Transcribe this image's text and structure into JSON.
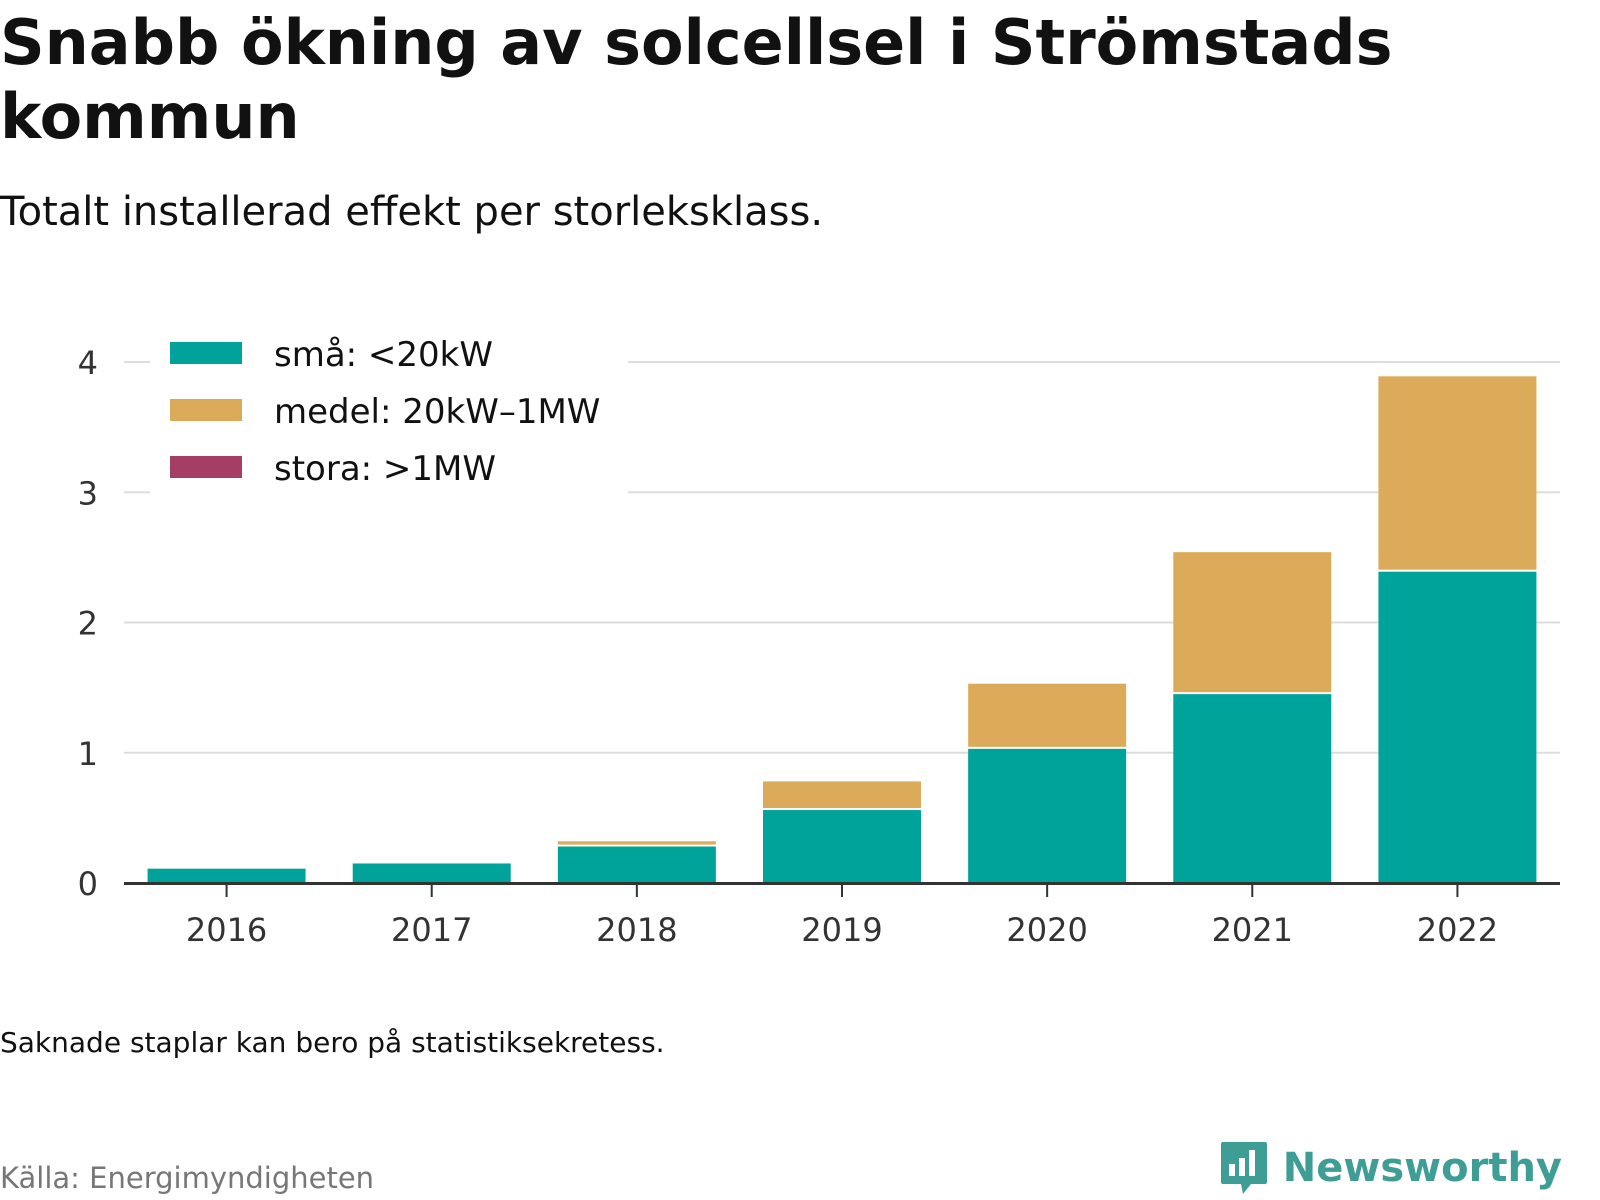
{
  "title": "Snabb ökning av solcellsel i Strömstads kommun",
  "subtitle": "Totalt installerad effekt per storleksklass.",
  "note": "Saknade staplar kan bero på statistiksekretess.",
  "source": "Källa: Energimyndigheten",
  "brand": {
    "name": "Newsworthy",
    "icon": "newsworthy-logo-icon",
    "color": "#3e9e96"
  },
  "chart_data": {
    "type": "bar",
    "stacked": true,
    "categories": [
      "2016",
      "2017",
      "2018",
      "2019",
      "2020",
      "2021",
      "2022"
    ],
    "series": [
      {
        "name": "små: <20kW",
        "color": "#00a39a",
        "values": [
          0.11,
          0.15,
          0.28,
          0.56,
          1.03,
          1.45,
          2.39
        ]
      },
      {
        "name": "medel: 20kW–1MW",
        "color": "#dbab5a",
        "values": [
          0.0,
          0.0,
          0.04,
          0.22,
          0.5,
          1.09,
          1.5
        ]
      },
      {
        "name": "stora: >1MW",
        "color": "#a53e64",
        "values": [
          0,
          0,
          0,
          0,
          0,
          0,
          0
        ]
      }
    ],
    "ylim": [
      0,
      4
    ],
    "yticks": [
      "0",
      "1",
      "2",
      "3",
      "4"
    ],
    "xlabel": "",
    "ylabel": "",
    "grid": true,
    "legend": "top-left"
  }
}
